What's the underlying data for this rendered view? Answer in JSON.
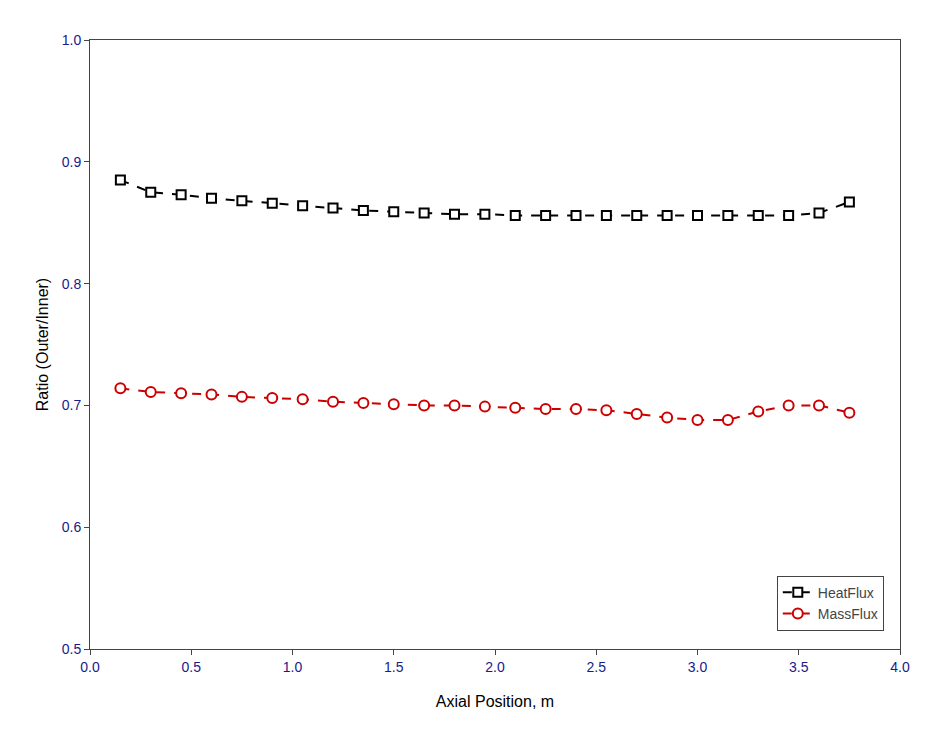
{
  "chart_data": {
    "type": "line",
    "xlabel": "Axial Position, m",
    "ylabel": "Ratio (Outer/Inner)",
    "x": [
      0.15,
      0.3,
      0.45,
      0.6,
      0.75,
      0.9,
      1.05,
      1.2,
      1.35,
      1.5,
      1.65,
      1.8,
      1.95,
      2.1,
      2.25,
      2.4,
      2.55,
      2.7,
      2.85,
      3.0,
      3.15,
      3.3,
      3.45,
      3.6,
      3.75
    ],
    "series": [
      {
        "name": "HeatFlux",
        "color": "#000000",
        "marker": "square",
        "line_style": "dashed",
        "values": [
          0.885,
          0.875,
          0.873,
          0.87,
          0.868,
          0.866,
          0.864,
          0.862,
          0.86,
          0.859,
          0.858,
          0.857,
          0.857,
          0.856,
          0.856,
          0.856,
          0.856,
          0.856,
          0.856,
          0.856,
          0.856,
          0.856,
          0.856,
          0.858,
          0.867
        ]
      },
      {
        "name": "MassFlux",
        "color": "#cc0000",
        "marker": "circle",
        "line_style": "dashed",
        "values": [
          0.714,
          0.711,
          0.71,
          0.709,
          0.707,
          0.706,
          0.705,
          0.703,
          0.702,
          0.701,
          0.7,
          0.7,
          0.699,
          0.698,
          0.697,
          0.697,
          0.696,
          0.693,
          0.69,
          0.688,
          0.688,
          0.695,
          0.7,
          0.7,
          0.694
        ]
      }
    ],
    "xlim": [
      0.0,
      4.0
    ],
    "ylim": [
      0.5,
      1.0
    ],
    "xticks": [
      {
        "value": 0.0,
        "label": "0.0"
      },
      0.5,
      {
        "value": 1.0,
        "label": "1.0"
      },
      1.5,
      {
        "value": 2.0,
        "label": "2.0"
      },
      2.5,
      {
        "value": 3.0,
        "label": "3.0"
      },
      3.5,
      {
        "value": 4.0,
        "label": "4.0"
      }
    ],
    "yticks": [
      0.5,
      0.6,
      0.7,
      0.8,
      0.9,
      {
        "value": 1.0,
        "label": "1.0"
      }
    ],
    "grid": false,
    "legend": "lower right"
  }
}
